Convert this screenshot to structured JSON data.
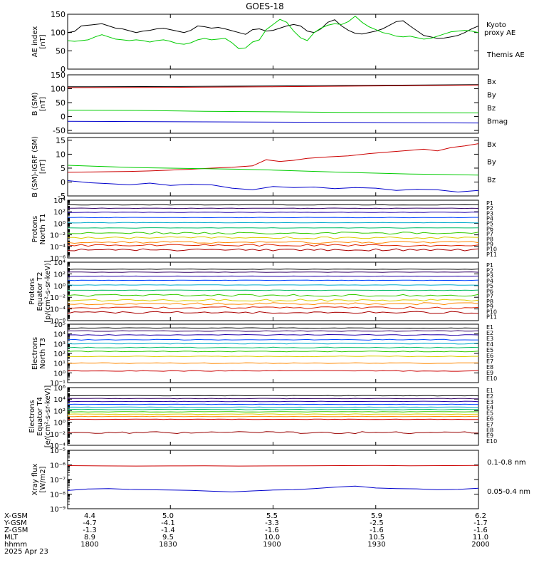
{
  "title": "GOES-18",
  "date_label": "2025 Apr 23",
  "ephemeris": {
    "rows": [
      {
        "label": "X-GSM",
        "values": [
          "4.4",
          "5.0",
          "5.5",
          "5.9",
          "6.2"
        ]
      },
      {
        "label": "Y-GSM",
        "values": [
          "-4.7",
          "-4.1",
          "-3.3",
          "-2.5",
          "-1.7"
        ]
      },
      {
        "label": "Z-GSM",
        "values": [
          "-1.3",
          "-1.4",
          "-1.6",
          "-1.6",
          "-1.6"
        ]
      },
      {
        "label": "MLT",
        "values": [
          "8.9",
          "9.5",
          "10.0",
          "10.5",
          "11.0"
        ]
      },
      {
        "label": "hhmm",
        "values": [
          "1800",
          "1830",
          "1900",
          "1930",
          "2000"
        ]
      }
    ]
  },
  "colors": {
    "black": "#000000",
    "green": "#00cc00",
    "red": "#cc0000",
    "blue": "#0000cc"
  },
  "chart_data": [
    {
      "type": "line",
      "id": "ae",
      "ylabel": [
        "AE index",
        "[nT]"
      ],
      "ylim": [
        0,
        150
      ],
      "yticks": [
        "0",
        "50",
        "100",
        "150"
      ],
      "x": [
        "1800",
        "1830",
        "1900",
        "1930",
        "2000"
      ],
      "series": [
        {
          "name": "Themis AE",
          "color": "#000000",
          "x": [
            0,
            2,
            4,
            6,
            8,
            10,
            12,
            14,
            16,
            18,
            20,
            22,
            24,
            26,
            28,
            30,
            32,
            34,
            36,
            38,
            40,
            42,
            44,
            46,
            48,
            50,
            52,
            54,
            56,
            58,
            60,
            62,
            64,
            66,
            68,
            70,
            72,
            74,
            76,
            78,
            80,
            82,
            84,
            86,
            88,
            90,
            92,
            94,
            96,
            98,
            100,
            102,
            104,
            106,
            108,
            110,
            112,
            114,
            116,
            118,
            120
          ],
          "y": [
            100,
            103,
            118,
            120,
            122,
            124,
            118,
            112,
            110,
            105,
            100,
            104,
            106,
            110,
            112,
            108,
            104,
            100,
            106,
            118,
            116,
            112,
            114,
            110,
            105,
            100,
            95,
            108,
            110,
            104,
            106,
            112,
            118,
            122,
            118,
            104,
            100,
            110,
            128,
            135,
            118,
            106,
            98,
            96,
            100,
            104,
            110,
            120,
            130,
            132,
            118,
            105,
            92,
            88,
            84,
            85,
            88,
            92,
            100,
            110,
            118
          ]
        },
        {
          "name": "Kyoto proxy AE",
          "color": "#00cc00",
          "x": [
            0,
            2,
            4,
            6,
            8,
            10,
            12,
            14,
            16,
            18,
            20,
            22,
            24,
            26,
            28,
            30,
            32,
            34,
            36,
            38,
            40,
            42,
            44,
            46,
            48,
            50,
            52,
            54,
            56,
            58,
            60,
            62,
            64,
            66,
            68,
            70,
            72,
            74,
            76,
            78,
            80,
            82,
            84,
            86,
            88,
            90,
            92,
            94,
            96,
            98,
            100,
            102,
            104,
            106,
            108,
            110,
            112,
            114,
            116,
            118,
            120
          ],
          "y": [
            78,
            76,
            78,
            80,
            88,
            94,
            88,
            82,
            80,
            78,
            80,
            78,
            74,
            78,
            80,
            76,
            70,
            68,
            72,
            80,
            84,
            80,
            82,
            84,
            72,
            56,
            58,
            74,
            80,
            108,
            122,
            136,
            128,
            104,
            86,
            78,
            100,
            112,
            120,
            124,
            122,
            130,
            145,
            128,
            116,
            108,
            100,
            96,
            90,
            88,
            90,
            86,
            82,
            84,
            90,
            96,
            102,
            104,
            106,
            104,
            100
          ]
        }
      ],
      "right_labels": [
        {
          "text": "Kyoto",
          "color": "#00cc00"
        },
        {
          "text": "proxy AE",
          "color": "#00cc00"
        },
        {
          "text": "Themis AE",
          "color": "#000000"
        }
      ]
    },
    {
      "type": "line",
      "id": "bfield",
      "ylabel": [
        "B (SM)",
        "[nT]"
      ],
      "ylim": [
        -60,
        150
      ],
      "yticks": [
        "-50",
        "0",
        "50",
        "100",
        "150"
      ],
      "series": [
        {
          "name": "Bmag",
          "color": "#000000",
          "x": [
            0,
            30,
            60,
            90,
            120
          ],
          "y": [
            107,
            108,
            110,
            112,
            115
          ]
        },
        {
          "name": "Bz",
          "color": "#cc0000",
          "x": [
            0,
            30,
            60,
            90,
            120
          ],
          "y": [
            104,
            105,
            107,
            110,
            113
          ]
        },
        {
          "name": "By",
          "color": "#00cc00",
          "x": [
            0,
            20,
            40,
            60,
            80,
            100,
            120
          ],
          "y": [
            23,
            22,
            19,
            17,
            15,
            14,
            13
          ]
        },
        {
          "name": "Bx",
          "color": "#0000cc",
          "x": [
            0,
            20,
            40,
            60,
            80,
            100,
            120
          ],
          "y": [
            -17,
            -18,
            -19,
            -20,
            -21,
            -22,
            -23
          ]
        }
      ],
      "right_labels": [
        {
          "text": "Bx",
          "color": "#0000cc"
        },
        {
          "text": "By",
          "color": "#00cc00"
        },
        {
          "text": "Bz",
          "color": "#cc0000"
        },
        {
          "text": "Bmag",
          "color": "#000000"
        }
      ]
    },
    {
      "type": "line",
      "id": "bdiff",
      "ylabel": [
        "B (SM)-IGRF (SM)",
        "[nT]"
      ],
      "ylim": [
        -5,
        16
      ],
      "yticks": [
        "-5",
        "0",
        "5",
        "10",
        "15"
      ],
      "series": [
        {
          "name": "Bz",
          "color": "#cc0000",
          "x": [
            0,
            6,
            12,
            18,
            24,
            30,
            36,
            42,
            48,
            54,
            58,
            62,
            66,
            70,
            76,
            82,
            88,
            94,
            100,
            104,
            108,
            112,
            116,
            120
          ],
          "y": [
            3.5,
            3.6,
            3.7,
            3.8,
            4.0,
            4.3,
            4.6,
            5.0,
            5.3,
            5.8,
            8.0,
            7.4,
            7.8,
            8.5,
            9.0,
            9.4,
            10.2,
            10.8,
            11.4,
            11.8,
            11.2,
            12.4,
            13.0,
            13.8
          ]
        },
        {
          "name": "By",
          "color": "#00cc00",
          "x": [
            0,
            10,
            20,
            30,
            40,
            50,
            60,
            70,
            80,
            90,
            100,
            110,
            120
          ],
          "y": [
            6.0,
            5.6,
            5.2,
            5.0,
            4.8,
            4.6,
            4.3,
            3.9,
            3.5,
            3.2,
            2.9,
            2.7,
            2.5
          ]
        },
        {
          "name": "Bx",
          "color": "#0000cc",
          "x": [
            0,
            6,
            12,
            18,
            24,
            30,
            36,
            42,
            48,
            54,
            60,
            66,
            72,
            78,
            84,
            90,
            96,
            102,
            108,
            114,
            120
          ],
          "y": [
            0.5,
            -0.2,
            -0.6,
            -1.0,
            -0.4,
            -1.2,
            -0.8,
            -1.0,
            -2.2,
            -2.8,
            -1.6,
            -2.0,
            -1.8,
            -2.4,
            -2.0,
            -2.2,
            -3.0,
            -2.6,
            -2.8,
            -3.6,
            -3.0
          ]
        }
      ],
      "right_labels": [
        {
          "text": "Bx",
          "color": "#0000cc"
        },
        {
          "text": "By",
          "color": "#00cc00"
        },
        {
          "text": "Bz",
          "color": "#cc0000"
        }
      ]
    },
    {
      "type": "line",
      "id": "protons_t1",
      "scale": "log",
      "ylabel": [
        "Protons",
        "North T1"
      ],
      "ylim_exp": [
        -6,
        4
      ],
      "ytick_exps": [
        -6,
        -4,
        -2,
        0,
        2,
        4
      ],
      "channels": [
        {
          "name": "P1",
          "color": "#000000",
          "log": 3.2
        },
        {
          "name": "P2",
          "color": "#330066",
          "log": 2.6
        },
        {
          "name": "P3",
          "color": "#2200aa",
          "log": 1.9
        },
        {
          "name": "P4",
          "color": "#0044ff",
          "log": 1.0
        },
        {
          "name": "P5",
          "color": "#00aacc",
          "log": 0.1
        },
        {
          "name": "P6",
          "color": "#00bb66",
          "log": -0.8
        },
        {
          "name": "P7",
          "color": "#33cc00",
          "log": -1.7
        },
        {
          "name": "P8",
          "color": "#ddcc00",
          "log": -2.5
        },
        {
          "name": "P9",
          "color": "#ff8800",
          "log": -3.3
        },
        {
          "name": "P10",
          "color": "#dd2200",
          "log": -3.8
        },
        {
          "name": "P11",
          "color": "#aa0000",
          "log": -4.6
        }
      ]
    },
    {
      "type": "line",
      "id": "protons_t2",
      "scale": "log",
      "ylabel": [
        "Protons",
        "Equator T2",
        "[p/(cm²-s-sr-keV)]"
      ],
      "ylim_exp": [
        -6,
        4
      ],
      "ytick_exps": [
        -6,
        -4,
        -2,
        0,
        2,
        4
      ],
      "channels": [
        {
          "name": "P1",
          "color": "#000000",
          "log": 2.8
        },
        {
          "name": "P2",
          "color": "#330066",
          "log": 2.3
        },
        {
          "name": "P3",
          "color": "#2200aa",
          "log": 1.6
        },
        {
          "name": "P4",
          "color": "#0044ff",
          "log": 0.9
        },
        {
          "name": "P5",
          "color": "#00aacc",
          "log": 0.1
        },
        {
          "name": "P6",
          "color": "#00bb66",
          "log": -0.8
        },
        {
          "name": "P7",
          "color": "#33cc00",
          "log": -1.7
        },
        {
          "name": "P8",
          "color": "#ddcc00",
          "log": -2.5
        },
        {
          "name": "P9",
          "color": "#ff8800",
          "log": -3.1
        },
        {
          "name": "P10",
          "color": "#dd2200",
          "log": -3.8
        },
        {
          "name": "P11",
          "color": "#aa0000",
          "log": -4.6
        }
      ]
    },
    {
      "type": "line",
      "id": "electrons_t3",
      "scale": "log",
      "ylabel": [
        "Electrons",
        "North T3"
      ],
      "ylim_exp": [
        -1,
        5
      ],
      "ytick_exps": [
        -1,
        0,
        1,
        2,
        3,
        4,
        5
      ],
      "channels": [
        {
          "name": "E1",
          "color": "#000000",
          "log": 4.6
        },
        {
          "name": "E2",
          "color": "#330066",
          "log": 4.3
        },
        {
          "name": "E3",
          "color": "#2200aa",
          "log": 3.9
        },
        {
          "name": "E4",
          "color": "#0044ff",
          "log": 3.4
        },
        {
          "name": "E5",
          "color": "#00aacc",
          "log": 3.0
        },
        {
          "name": "E6",
          "color": "#00bb66",
          "log": 2.6
        },
        {
          "name": "E7",
          "color": "#33cc00",
          "log": 2.2
        },
        {
          "name": "E8",
          "color": "#ddcc00",
          "log": 1.7
        },
        {
          "name": "E9",
          "color": "#ff8800",
          "log": 1.0
        },
        {
          "name": "E10",
          "color": "#cc0000",
          "log": 0.2
        }
      ]
    },
    {
      "type": "line",
      "id": "electrons_t4",
      "scale": "log",
      "ylabel": [
        "Electrons",
        "Equator T4",
        "[e/(cm²-s-sr-keV)]"
      ],
      "ylim_exp": [
        -4,
        6
      ],
      "ytick_exps": [
        -4,
        -2,
        0,
        2,
        4,
        6
      ],
      "channels": [
        {
          "name": "E1",
          "color": "#000000",
          "log": 4.6
        },
        {
          "name": "E2",
          "color": "#330066",
          "log": 4.1
        },
        {
          "name": "E3",
          "color": "#2200aa",
          "log": 3.6
        },
        {
          "name": "E4",
          "color": "#0044ff",
          "log": 3.1
        },
        {
          "name": "E5",
          "color": "#00aacc",
          "log": 2.6
        },
        {
          "name": "E6",
          "color": "#00bb66",
          "log": 2.2
        },
        {
          "name": "E7",
          "color": "#33cc00",
          "log": 1.8
        },
        {
          "name": "E8",
          "color": "#ddcc00",
          "log": 1.4
        },
        {
          "name": "E9",
          "color": "#ff8800",
          "log": 1.0
        },
        {
          "name": "E10",
          "color": "#cc0000",
          "log": 0.5
        },
        {
          "name": "",
          "color": "#990000",
          "log": -1.8
        }
      ]
    },
    {
      "type": "line",
      "id": "xray",
      "scale": "log",
      "ylabel": [
        "Xray flux",
        "[W/m2]"
      ],
      "ylim_exp": [
        -9,
        -5
      ],
      "ytick_exps": [
        -9,
        -8,
        -7,
        -6,
        -5
      ],
      "series": [
        {
          "name": "0.1-0.8 nm",
          "color": "#cc0000",
          "x": [
            0,
            10,
            20,
            30,
            40,
            50,
            60,
            70,
            80,
            90,
            100,
            110,
            120
          ],
          "y_log": [
            -6.05,
            -6.07,
            -6.08,
            -6.07,
            -6.06,
            -6.08,
            -6.07,
            -6.06,
            -6.05,
            -6.04,
            -6.06,
            -6.05,
            -6.04
          ]
        },
        {
          "name": "0.05-0.4 nm",
          "color": "#0000cc",
          "x": [
            0,
            6,
            12,
            18,
            24,
            30,
            36,
            42,
            48,
            54,
            60,
            66,
            72,
            78,
            84,
            90,
            96,
            102,
            108,
            114,
            120
          ],
          "y_log": [
            -7.75,
            -7.65,
            -7.62,
            -7.68,
            -7.7,
            -7.72,
            -7.74,
            -7.8,
            -7.85,
            -7.78,
            -7.72,
            -7.7,
            -7.62,
            -7.52,
            -7.45,
            -7.58,
            -7.62,
            -7.64,
            -7.7,
            -7.68,
            -7.6
          ]
        }
      ],
      "right_labels": [
        {
          "text": "0.1-0.8 nm",
          "color": "#cc0000"
        },
        {
          "text": "0.05-0.4 nm",
          "color": "#0000cc"
        }
      ]
    }
  ]
}
